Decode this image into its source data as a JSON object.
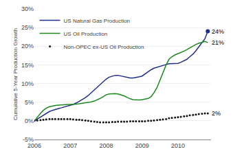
{
  "chart_data": {
    "type": "line",
    "y_label": "Cumulative 5-Year Production Growth",
    "xlim": [
      2006.0,
      2010.92
    ],
    "xticks": [
      2006,
      2007,
      2008,
      2009,
      2010
    ],
    "ylim": [
      -0.05,
      0.3
    ],
    "yticks": [
      {
        "value": -0.05,
        "label": "-5%"
      },
      {
        "value": 0.0,
        "label": "0%"
      },
      {
        "value": 0.05,
        "label": "5%"
      },
      {
        "value": 0.1,
        "label": "10%"
      },
      {
        "value": 0.15,
        "label": "15%"
      },
      {
        "value": 0.2,
        "label": "20%"
      },
      {
        "value": 0.25,
        "label": "25%"
      },
      {
        "value": 0.3,
        "label": "30%"
      }
    ],
    "grid": "y",
    "legend": "upper left",
    "x": [
      2006.0,
      2006.08,
      2006.17,
      2006.25,
      2006.33,
      2006.42,
      2006.5,
      2006.58,
      2006.67,
      2006.75,
      2006.83,
      2006.92,
      2007.0,
      2007.08,
      2007.17,
      2007.25,
      2007.33,
      2007.42,
      2007.5,
      2007.58,
      2007.67,
      2007.75,
      2007.83,
      2007.92,
      2008.0,
      2008.08,
      2008.17,
      2008.25,
      2008.33,
      2008.42,
      2008.5,
      2008.58,
      2008.67,
      2008.75,
      2008.83,
      2008.92,
      2009.0,
      2009.08,
      2009.17,
      2009.25,
      2009.33,
      2009.42,
      2009.5,
      2009.58,
      2009.67,
      2009.75,
      2009.83,
      2009.92,
      2010.0,
      2010.08,
      2010.17,
      2010.25,
      2010.33,
      2010.42,
      2010.5,
      2010.58,
      2010.67,
      2010.75,
      2010.83
    ],
    "series": [
      {
        "name": "US Natural Gas Production",
        "color": "#1f2e8a",
        "marker": "end",
        "values": [
          0.0,
          0.005,
          0.01,
          0.015,
          0.02,
          0.025,
          0.028,
          0.031,
          0.033,
          0.035,
          0.037,
          0.039,
          0.041,
          0.044,
          0.048,
          0.052,
          0.056,
          0.062,
          0.068,
          0.075,
          0.083,
          0.09,
          0.097,
          0.105,
          0.112,
          0.117,
          0.12,
          0.122,
          0.122,
          0.12,
          0.118,
          0.116,
          0.115,
          0.115,
          0.116,
          0.118,
          0.12,
          0.126,
          0.132,
          0.137,
          0.141,
          0.144,
          0.146,
          0.148,
          0.151,
          0.153,
          0.153,
          0.153,
          0.154,
          0.157,
          0.161,
          0.165,
          0.172,
          0.179,
          0.188,
          0.198,
          0.21,
          0.22,
          0.24
        ]
      },
      {
        "name": "US Oil Production",
        "color": "#1a8a1a",
        "values": [
          0.0,
          0.01,
          0.02,
          0.028,
          0.034,
          0.038,
          0.04,
          0.041,
          0.042,
          0.043,
          0.044,
          0.044,
          0.044,
          0.044,
          0.045,
          0.046,
          0.047,
          0.048,
          0.049,
          0.051,
          0.053,
          0.056,
          0.06,
          0.065,
          0.07,
          0.072,
          0.073,
          0.073,
          0.072,
          0.07,
          0.067,
          0.063,
          0.059,
          0.057,
          0.056,
          0.056,
          0.057,
          0.058,
          0.06,
          0.065,
          0.075,
          0.09,
          0.11,
          0.13,
          0.15,
          0.165,
          0.172,
          0.177,
          0.18,
          0.183,
          0.187,
          0.191,
          0.196,
          0.2,
          0.205,
          0.208,
          0.21,
          0.213,
          0.21
        ]
      },
      {
        "name": "Non-OPEC ex-US Oil Production",
        "color": "#111111",
        "marker": "dot",
        "line_style": "none",
        "values": [
          0.0,
          0.001,
          0.002,
          0.003,
          0.004,
          0.005,
          0.005,
          0.005,
          0.005,
          0.005,
          0.005,
          0.005,
          0.005,
          0.004,
          0.003,
          0.003,
          0.002,
          0.001,
          0.0,
          -0.001,
          -0.002,
          -0.003,
          -0.004,
          -0.004,
          -0.004,
          -0.004,
          -0.003,
          -0.003,
          -0.002,
          -0.002,
          -0.002,
          -0.002,
          -0.001,
          -0.001,
          -0.001,
          -0.001,
          -0.001,
          -0.001,
          0.0,
          0.0,
          0.001,
          0.002,
          0.003,
          0.004,
          0.005,
          0.007,
          0.008,
          0.009,
          0.01,
          0.011,
          0.012,
          0.013,
          0.015,
          0.016,
          0.017,
          0.018,
          0.019,
          0.02,
          0.02
        ]
      }
    ],
    "annotations": [
      {
        "text": "24%",
        "x": 2010.83,
        "y": 0.24
      },
      {
        "text": "21%",
        "x": 2010.83,
        "y": 0.21
      },
      {
        "text": "2%",
        "x": 2010.83,
        "y": 0.02
      }
    ]
  }
}
